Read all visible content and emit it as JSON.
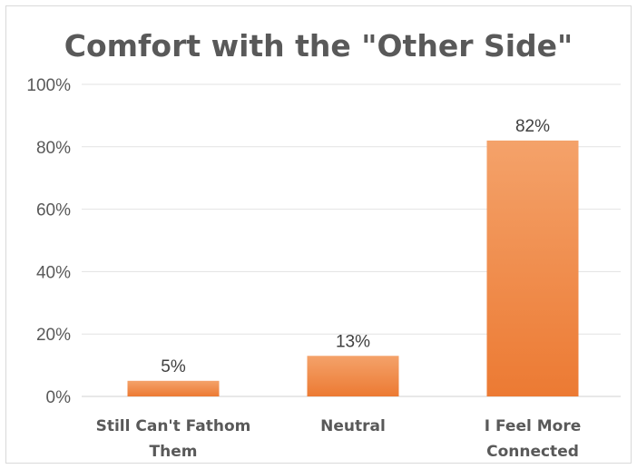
{
  "chart_data": {
    "type": "bar",
    "title": "Comfort with the \"Other Side\"",
    "categories": [
      "Still Can't Fathom Them",
      "Neutral",
      "I Feel More Connected"
    ],
    "category_lines": [
      [
        "Still Can't Fathom",
        "Them"
      ],
      [
        "Neutral"
      ],
      [
        "I Feel More",
        "Connected"
      ]
    ],
    "values": [
      5,
      13,
      82
    ],
    "data_labels": [
      "5%",
      "13%",
      "82%"
    ],
    "ylim": [
      0,
      100
    ],
    "yticks": [
      0,
      20,
      40,
      60,
      80,
      100
    ],
    "ytick_labels": [
      "0%",
      "20%",
      "40%",
      "60%",
      "80%",
      "100%"
    ],
    "xlabel": "",
    "ylabel": "",
    "grid": true,
    "legend": "none",
    "bar_color_top": "#f4a26a",
    "bar_color_bottom": "#ec7a33"
  }
}
